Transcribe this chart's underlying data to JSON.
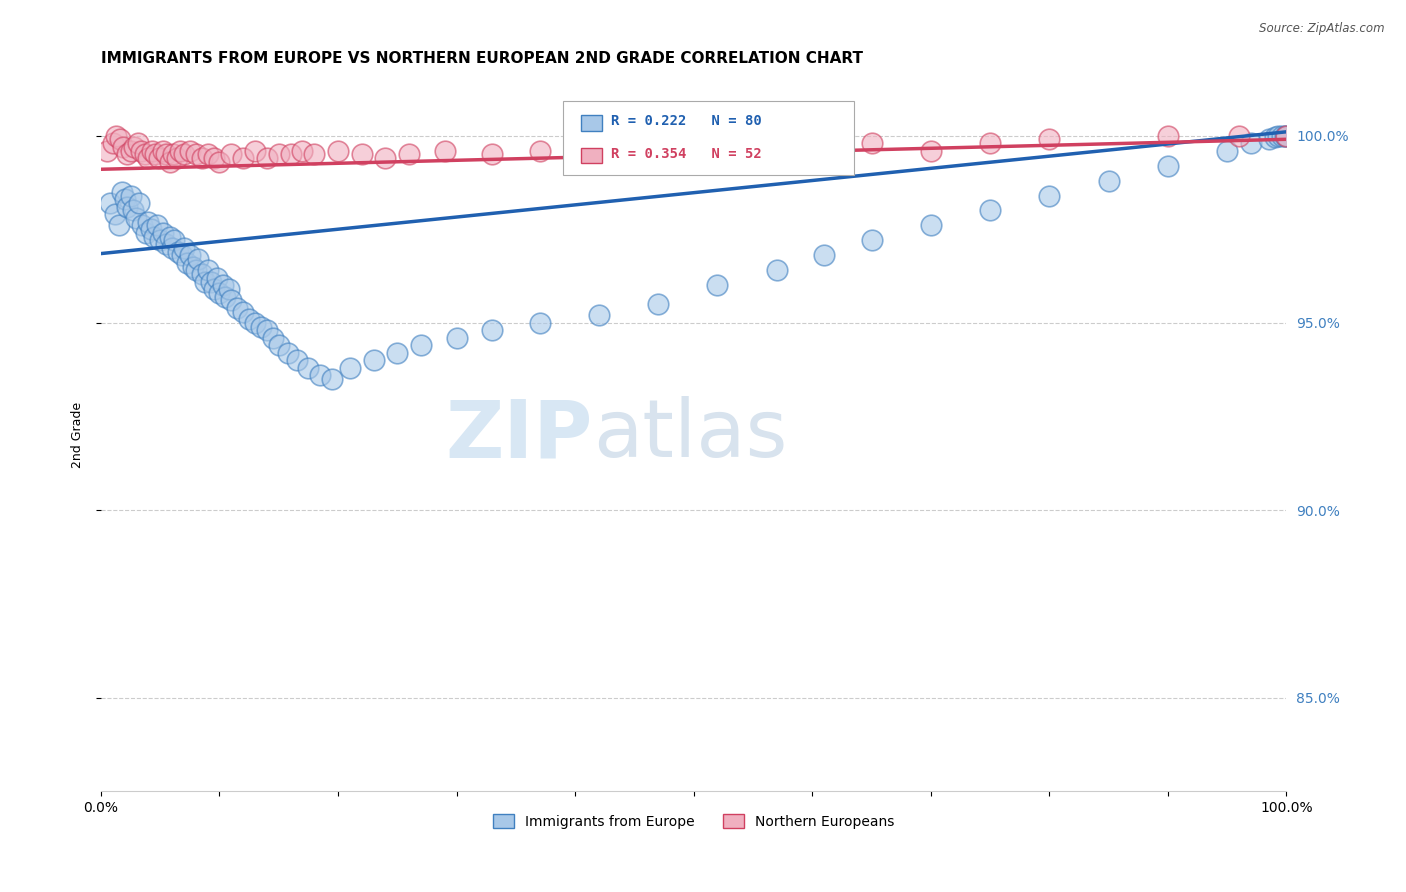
{
  "title": "IMMIGRANTS FROM EUROPE VS NORTHERN EUROPEAN 2ND GRADE CORRELATION CHART",
  "source": "Source: ZipAtlas.com",
  "ylabel": "2nd Grade",
  "blue_R": 0.222,
  "blue_N": 80,
  "pink_R": 0.354,
  "pink_N": 52,
  "blue_color": "#a8c8e8",
  "pink_color": "#f0b0c0",
  "blue_edge_color": "#4080c0",
  "pink_edge_color": "#d04060",
  "blue_line_color": "#2060b0",
  "pink_line_color": "#d04060",
  "legend_label_blue": "Immigrants from Europe",
  "legend_label_pink": "Northern Europeans",
  "xlim": [
    0.0,
    1.0
  ],
  "ylim": [
    0.825,
    1.015
  ],
  "yticks": [
    0.85,
    0.9,
    0.95,
    1.0
  ],
  "ytick_labels": [
    "85.0%",
    "90.0%",
    "95.0%",
    "100.0%"
  ],
  "blue_line_x0": 0.0,
  "blue_line_x1": 1.0,
  "blue_line_y0": 0.9685,
  "blue_line_y1": 1.001,
  "pink_line_x0": 0.0,
  "pink_line_x1": 1.0,
  "pink_line_y0": 0.991,
  "pink_line_y1": 0.999,
  "blue_scatter_x": [
    0.008,
    0.012,
    0.015,
    0.018,
    0.02,
    0.022,
    0.025,
    0.027,
    0.03,
    0.032,
    0.035,
    0.038,
    0.04,
    0.042,
    0.045,
    0.047,
    0.05,
    0.052,
    0.055,
    0.058,
    0.06,
    0.062,
    0.065,
    0.068,
    0.07,
    0.073,
    0.075,
    0.078,
    0.08,
    0.082,
    0.085,
    0.088,
    0.09,
    0.093,
    0.095,
    0.098,
    0.1,
    0.103,
    0.105,
    0.108,
    0.11,
    0.115,
    0.12,
    0.125,
    0.13,
    0.135,
    0.14,
    0.145,
    0.15,
    0.158,
    0.165,
    0.175,
    0.185,
    0.195,
    0.21,
    0.23,
    0.25,
    0.27,
    0.3,
    0.33,
    0.37,
    0.42,
    0.47,
    0.52,
    0.57,
    0.61,
    0.65,
    0.7,
    0.75,
    0.8,
    0.85,
    0.9,
    0.95,
    0.97,
    0.985,
    0.99,
    0.993,
    0.996,
    0.999,
    1.0
  ],
  "blue_scatter_y": [
    0.982,
    0.979,
    0.976,
    0.985,
    0.983,
    0.981,
    0.984,
    0.98,
    0.978,
    0.982,
    0.976,
    0.974,
    0.977,
    0.975,
    0.973,
    0.976,
    0.972,
    0.974,
    0.971,
    0.973,
    0.97,
    0.972,
    0.969,
    0.968,
    0.97,
    0.966,
    0.968,
    0.965,
    0.964,
    0.967,
    0.963,
    0.961,
    0.964,
    0.961,
    0.959,
    0.962,
    0.958,
    0.96,
    0.957,
    0.959,
    0.956,
    0.954,
    0.953,
    0.951,
    0.95,
    0.949,
    0.948,
    0.946,
    0.944,
    0.942,
    0.94,
    0.938,
    0.936,
    0.935,
    0.938,
    0.94,
    0.942,
    0.944,
    0.946,
    0.948,
    0.95,
    0.952,
    0.955,
    0.96,
    0.964,
    0.968,
    0.972,
    0.976,
    0.98,
    0.984,
    0.988,
    0.992,
    0.996,
    0.998,
    0.999,
    0.9995,
    1.0,
    1.0,
    1.0,
    1.0
  ],
  "pink_scatter_x": [
    0.005,
    0.01,
    0.013,
    0.016,
    0.019,
    0.022,
    0.025,
    0.028,
    0.031,
    0.034,
    0.037,
    0.04,
    0.043,
    0.046,
    0.049,
    0.052,
    0.055,
    0.058,
    0.061,
    0.064,
    0.067,
    0.07,
    0.075,
    0.08,
    0.085,
    0.09,
    0.095,
    0.1,
    0.11,
    0.12,
    0.13,
    0.14,
    0.15,
    0.16,
    0.17,
    0.18,
    0.2,
    0.22,
    0.24,
    0.26,
    0.29,
    0.33,
    0.37,
    0.42,
    0.6,
    0.65,
    0.7,
    0.75,
    0.8,
    0.9,
    0.96,
    1.0
  ],
  "pink_scatter_y": [
    0.996,
    0.998,
    1.0,
    0.999,
    0.997,
    0.995,
    0.996,
    0.997,
    0.998,
    0.996,
    0.995,
    0.994,
    0.996,
    0.995,
    0.994,
    0.996,
    0.995,
    0.993,
    0.995,
    0.994,
    0.996,
    0.995,
    0.996,
    0.995,
    0.994,
    0.995,
    0.994,
    0.993,
    0.995,
    0.994,
    0.996,
    0.994,
    0.995,
    0.995,
    0.996,
    0.995,
    0.996,
    0.995,
    0.994,
    0.995,
    0.996,
    0.995,
    0.996,
    0.995,
    0.997,
    0.998,
    0.996,
    0.998,
    0.999,
    1.0,
    1.0,
    1.0
  ],
  "background_color": "#ffffff",
  "grid_color": "#cccccc"
}
